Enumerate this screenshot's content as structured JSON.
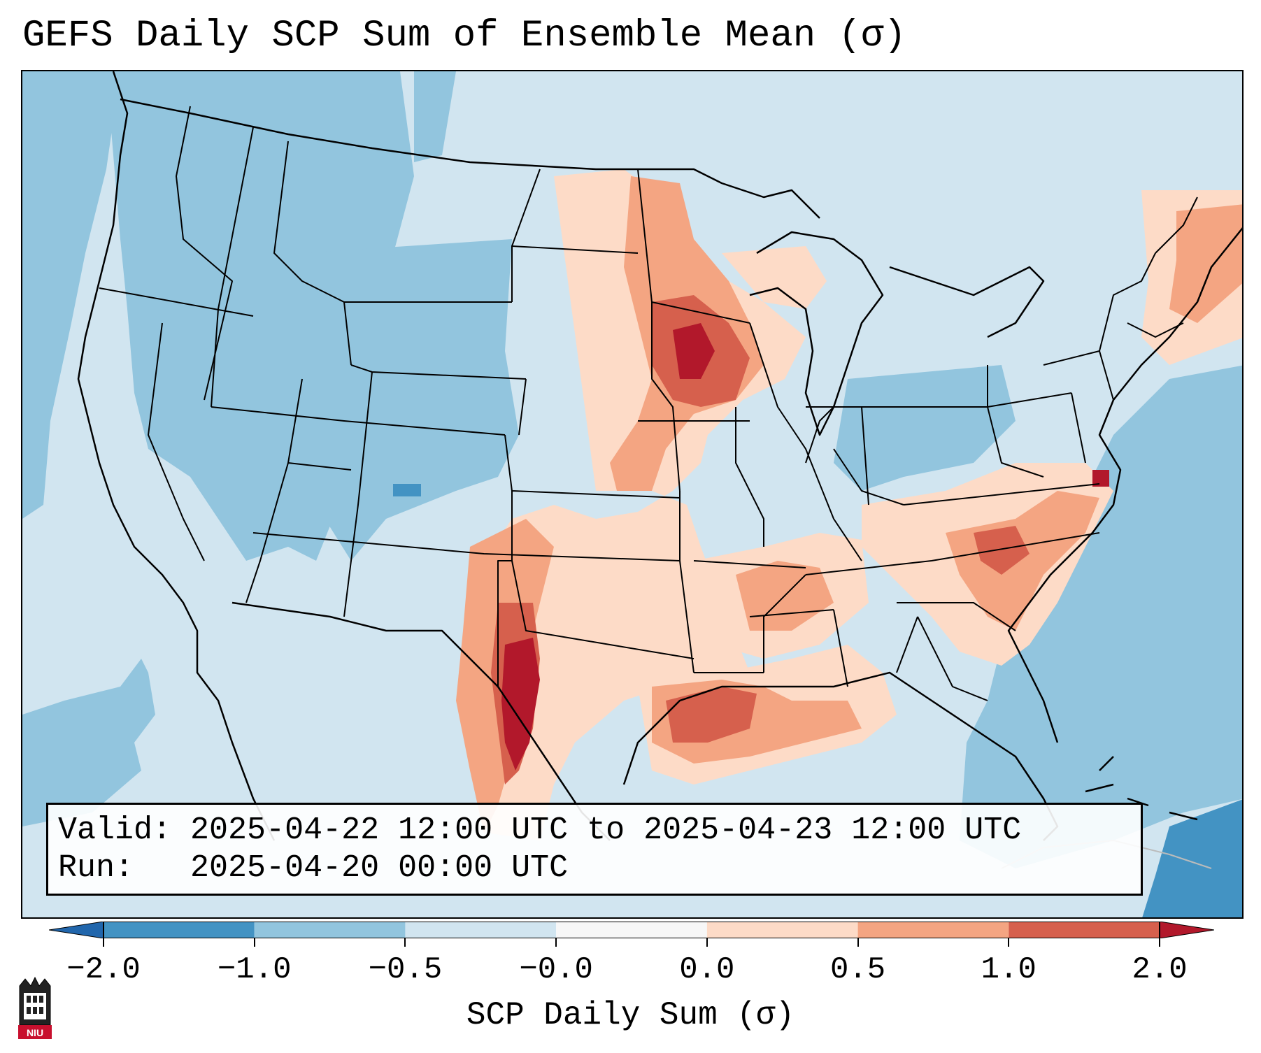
{
  "title": "GEFS Daily SCP Sum of Ensemble Mean (σ)",
  "info": {
    "valid_label": "Valid:",
    "valid_value": "2025-04-22 12:00 UTC to 2025-04-23 12:00 UTC",
    "run_label": "Run:",
    "run_value": "2025-04-20 00:00 UTC"
  },
  "colorbar": {
    "title": "SCP Daily Sum (σ)",
    "tick_labels": [
      "−2.0",
      "−1.0",
      "−0.5",
      "−0.0",
      "0.0",
      "0.5",
      "1.0",
      "2.0"
    ],
    "bins": [
      {
        "range": "< -2.0",
        "color": "#2166ac"
      },
      {
        "range": "-2.0 to -1.0",
        "color": "#4393c3"
      },
      {
        "range": "-1.0 to -0.5",
        "color": "#92c5de"
      },
      {
        "range": "-0.5 to -0.0",
        "color": "#d1e5f0"
      },
      {
        "range": "-0.0 to 0.0",
        "color": "#f7f7f7"
      },
      {
        "range": "0.0 to 0.5",
        "color": "#fddbc7"
      },
      {
        "range": "0.5 to 1.0",
        "color": "#f4a582"
      },
      {
        "range": "1.0 to 2.0",
        "color": "#d6604d"
      },
      {
        "range": "> 2.0",
        "color": "#b2182b"
      }
    ]
  },
  "map": {
    "projection": "Lambert conformal, CONUS",
    "background_value_color": "#d1e5f0",
    "features": [
      "coastlines",
      "state borders",
      "country borders",
      "Great Lakes"
    ],
    "highlights": [
      {
        "region": "Southern Plains / West Texas dryline",
        "level": "> 2.0",
        "color": "#b2182b"
      },
      {
        "region": "Iowa / Minnesota",
        "level": "1.0 to 2.0",
        "color": "#d6604d"
      },
      {
        "region": "Kansas / Missouri",
        "level": "0.5 to 1.0",
        "color": "#f4a582"
      },
      {
        "region": "Texas Gulf Coast / Louisiana",
        "level": "1.0 to 2.0",
        "color": "#d6604d"
      },
      {
        "region": "Carolinas / Georgia",
        "level": "0.5 to 1.0",
        "color": "#f4a582"
      },
      {
        "region": "Mid-South (Arkansas / Tennessee / Mississippi)",
        "level": "0.5 to 1.0",
        "color": "#f4a582"
      },
      {
        "region": "New England",
        "level": "0.5 to 1.0",
        "color": "#f4a582"
      },
      {
        "region": "Pacific Northwest / Great Basin",
        "level": "-1.0 to -0.5",
        "color": "#92c5de"
      },
      {
        "region": "Western Atlantic",
        "level": "-1.0 to -0.5",
        "color": "#92c5de"
      },
      {
        "region": "Caribbean",
        "level": "-2.0 to -1.0",
        "color": "#4393c3"
      }
    ]
  },
  "logo": {
    "text": "NIU",
    "color": "#c8102e"
  }
}
